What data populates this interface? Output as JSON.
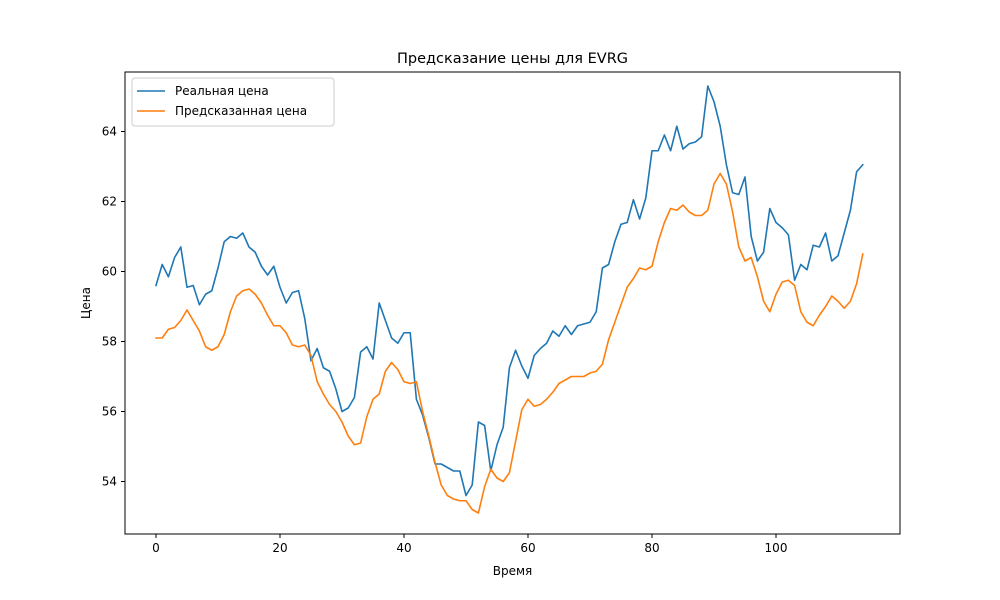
{
  "chart_data": {
    "type": "line",
    "title": "Предсказание цены для EVRG",
    "xlabel": "Время",
    "ylabel": "Цена",
    "xlim": [
      -5,
      120
    ],
    "ylim": [
      52.5,
      65.7
    ],
    "xticks": [
      0,
      20,
      40,
      60,
      80,
      100
    ],
    "yticks": [
      54,
      56,
      58,
      60,
      62,
      64
    ],
    "grid": false,
    "legend": "upper-left",
    "series": [
      {
        "name": "Реальная цена",
        "color": "#1f77b4",
        "values": [
          59.6,
          60.2,
          59.85,
          60.4,
          60.7,
          59.55,
          59.6,
          59.05,
          59.35,
          59.45,
          60.1,
          60.85,
          61.0,
          60.95,
          61.1,
          60.7,
          60.55,
          60.15,
          59.9,
          60.15,
          59.55,
          59.1,
          59.4,
          59.45,
          58.65,
          57.45,
          57.8,
          57.25,
          57.15,
          56.65,
          56.0,
          56.1,
          56.4,
          57.7,
          57.85,
          57.5,
          59.1,
          58.6,
          58.1,
          57.95,
          58.25,
          58.25,
          56.35,
          55.9,
          55.25,
          54.5,
          54.5,
          54.4,
          54.3,
          54.3,
          53.6,
          53.9,
          55.7,
          55.6,
          54.3,
          55.05,
          55.55,
          57.25,
          57.75,
          57.3,
          56.95,
          57.6,
          57.8,
          57.95,
          58.3,
          58.15,
          58.45,
          58.2,
          58.45,
          58.5,
          58.55,
          58.85,
          60.1,
          60.2,
          60.85,
          61.35,
          61.4,
          62.05,
          61.5,
          62.1,
          63.45,
          63.45,
          63.9,
          63.45,
          64.15,
          63.5,
          63.65,
          63.7,
          63.85,
          65.3,
          64.85,
          64.15,
          63.05,
          62.25,
          62.2,
          62.7,
          61.0,
          60.3,
          60.55,
          61.8,
          61.4,
          61.25,
          61.05,
          59.75,
          60.2,
          60.05,
          60.75,
          60.7,
          61.1,
          60.3,
          60.45,
          61.1,
          61.75,
          62.85,
          63.05
        ]
      },
      {
        "name": "Предсказанная цена",
        "color": "#ff7f0e",
        "values": [
          58.1,
          58.1,
          58.35,
          58.4,
          58.6,
          58.9,
          58.6,
          58.3,
          57.85,
          57.75,
          57.85,
          58.2,
          58.85,
          59.3,
          59.45,
          59.5,
          59.35,
          59.1,
          58.75,
          58.45,
          58.45,
          58.25,
          57.9,
          57.85,
          57.9,
          57.6,
          56.85,
          56.5,
          56.2,
          56.0,
          55.7,
          55.3,
          55.05,
          55.1,
          55.85,
          56.35,
          56.5,
          57.15,
          57.4,
          57.2,
          56.85,
          56.8,
          56.85,
          56.0,
          55.3,
          54.55,
          53.9,
          53.6,
          53.5,
          53.45,
          53.45,
          53.2,
          53.1,
          53.85,
          54.35,
          54.1,
          54.0,
          54.25,
          55.15,
          56.05,
          56.35,
          56.15,
          56.2,
          56.35,
          56.55,
          56.8,
          56.9,
          57.0,
          57.0,
          57.0,
          57.1,
          57.15,
          57.35,
          58.05,
          58.55,
          59.05,
          59.55,
          59.8,
          60.1,
          60.05,
          60.15,
          60.85,
          61.4,
          61.8,
          61.75,
          61.9,
          61.7,
          61.6,
          61.6,
          61.75,
          62.5,
          62.8,
          62.5,
          61.7,
          60.7,
          60.3,
          60.4,
          59.85,
          59.15,
          58.85,
          59.35,
          59.7,
          59.75,
          59.6,
          58.85,
          58.55,
          58.45,
          58.75,
          59.0,
          59.3,
          59.15,
          58.95,
          59.15,
          59.65,
          60.5
        ]
      }
    ]
  }
}
